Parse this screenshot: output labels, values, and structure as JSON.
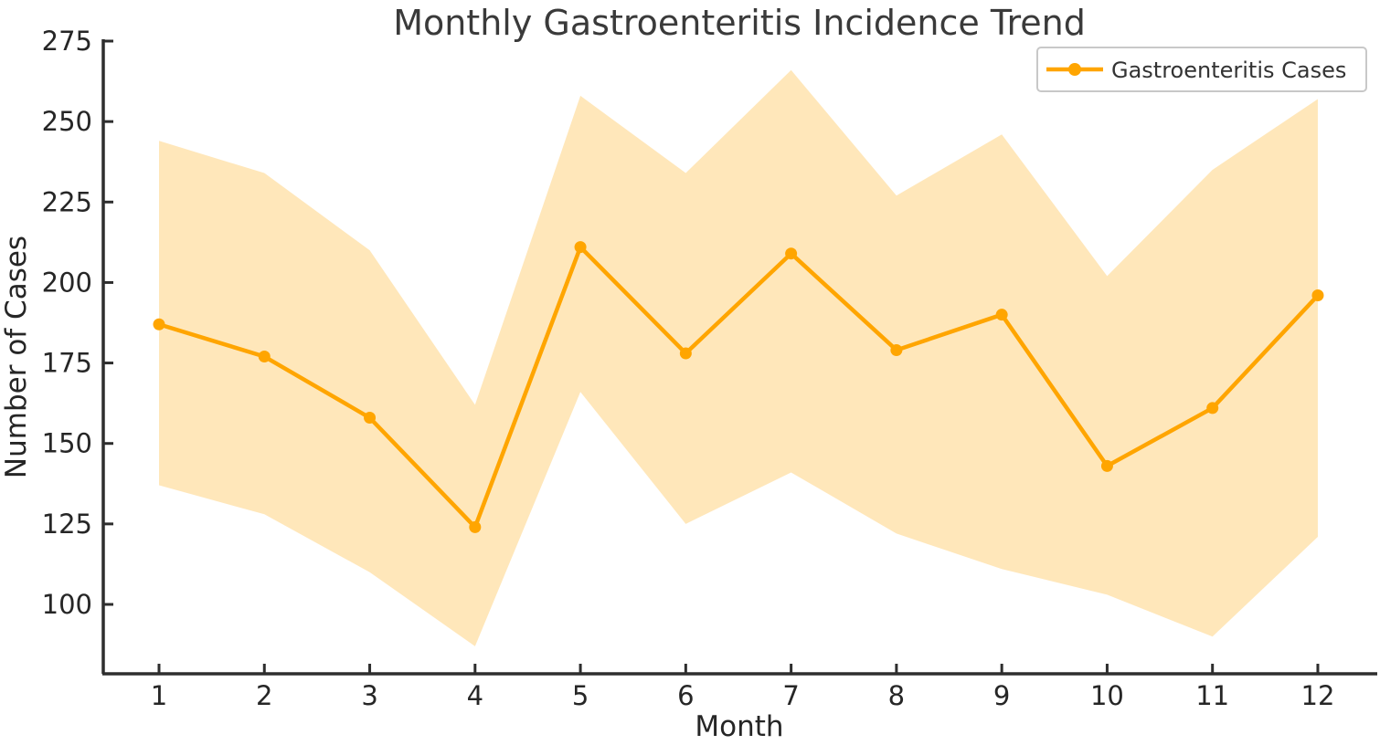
{
  "chart_data": {
    "type": "line",
    "title": "Monthly Gastroenteritis Incidence Trend",
    "xlabel": "Month",
    "ylabel": "Number of Cases",
    "x": [
      1,
      2,
      3,
      4,
      5,
      6,
      7,
      8,
      9,
      10,
      11,
      12
    ],
    "xticks": [
      1,
      2,
      3,
      4,
      5,
      6,
      7,
      8,
      9,
      10,
      11,
      12
    ],
    "yticks": [
      100,
      125,
      150,
      175,
      200,
      225,
      250,
      275
    ],
    "ylim": [
      78,
      275
    ],
    "grid": false,
    "legend_position": "upper right",
    "series": [
      {
        "name": "Gastroenteritis Cases",
        "values": [
          187,
          177,
          158,
          124,
          211,
          178,
          209,
          179,
          190,
          143,
          161,
          196
        ],
        "marker": "circle"
      }
    ],
    "band": {
      "name": "confidence-band",
      "lower": [
        137,
        128,
        110,
        87,
        166,
        125,
        141,
        122,
        111,
        103,
        90,
        121
      ],
      "upper": [
        244,
        234,
        210,
        162,
        258,
        234,
        266,
        227,
        246,
        202,
        235,
        257
      ]
    },
    "colors": {
      "line": "#FFA500",
      "marker": "#FFA500",
      "band_fill": "#FFA500",
      "band_opacity": "0.27",
      "spine": "#2e2e2e",
      "tick_label": "#262626",
      "title_text": "#3a3a3a",
      "legend_text": "#333333",
      "legend_border": "#c8c8c8"
    }
  }
}
